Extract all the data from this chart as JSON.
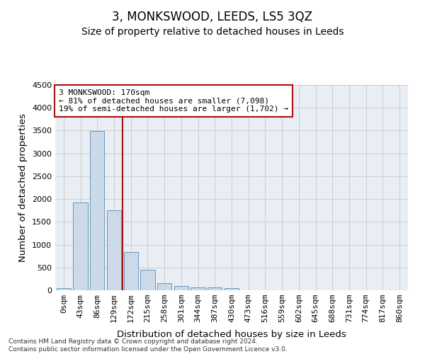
{
  "title": "3, MONKSWOOD, LEEDS, LS5 3QZ",
  "subtitle": "Size of property relative to detached houses in Leeds",
  "xlabel": "Distribution of detached houses by size in Leeds",
  "ylabel": "Number of detached properties",
  "footer_line1": "Contains HM Land Registry data © Crown copyright and database right 2024.",
  "footer_line2": "Contains public sector information licensed under the Open Government Licence v3.0.",
  "bar_labels": [
    "0sqm",
    "43sqm",
    "86sqm",
    "129sqm",
    "172sqm",
    "215sqm",
    "258sqm",
    "301sqm",
    "344sqm",
    "387sqm",
    "430sqm",
    "473sqm",
    "516sqm",
    "559sqm",
    "602sqm",
    "645sqm",
    "688sqm",
    "731sqm",
    "774sqm",
    "817sqm",
    "860sqm"
  ],
  "bar_values": [
    50,
    1920,
    3490,
    1760,
    840,
    455,
    160,
    100,
    65,
    55,
    40,
    0,
    0,
    0,
    0,
    0,
    0,
    0,
    0,
    0,
    0
  ],
  "bar_color": "#ccd9e8",
  "bar_edge_color": "#6699bb",
  "ylim": [
    0,
    4500
  ],
  "yticks": [
    0,
    500,
    1000,
    1500,
    2000,
    2500,
    3000,
    3500,
    4000,
    4500
  ],
  "vline_x": 3.5,
  "vline_color": "#aa1111",
  "annotation_line1": "3 MONKSWOOD: 170sqm",
  "annotation_line2": "← 81% of detached houses are smaller (7,098)",
  "annotation_line3": "19% of semi-detached houses are larger (1,702) →",
  "annotation_box_color": "#aa1111",
  "bg_color": "#e8eef4",
  "grid_color": "#c8c8c8",
  "title_fontsize": 12,
  "subtitle_fontsize": 10,
  "axis_label_fontsize": 9.5,
  "tick_fontsize": 8
}
